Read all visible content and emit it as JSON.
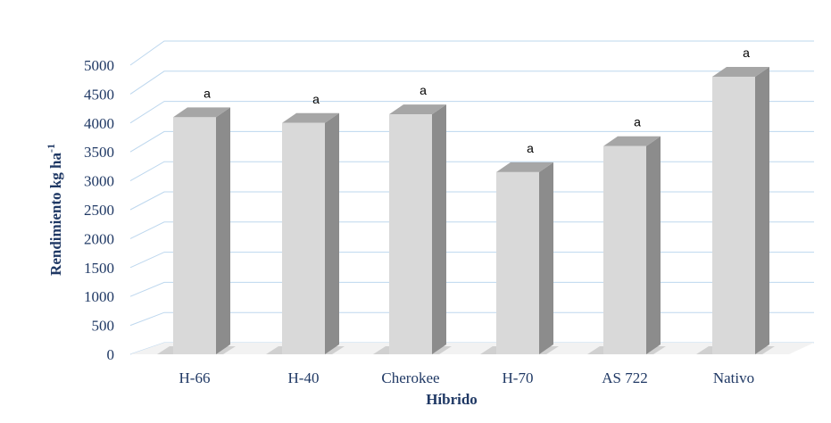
{
  "chart_data": {
    "type": "bar",
    "title": "",
    "xlabel": "Híbrido",
    "ylabel": "Rendimiento kg ha-1",
    "ylabel_main": "Rendimiento kg ha",
    "ylabel_sup": "-1",
    "categories": [
      "H-66",
      "H-40",
      "Cherokee",
      "H-70",
      "AS 722",
      "Nativo"
    ],
    "values": [
      4100,
      4000,
      4150,
      3150,
      3600,
      4800
    ],
    "annotations": [
      "a",
      "a",
      "a",
      "a",
      "a",
      "a"
    ],
    "ylim": [
      0,
      5000
    ],
    "yticks": [
      0,
      500,
      1000,
      1500,
      2000,
      2500,
      3000,
      3500,
      4000,
      4500,
      5000
    ],
    "ytick_labels": [
      "0",
      "500",
      "1000",
      "1500",
      "2000",
      "2500",
      "3000",
      "3500",
      "4000",
      "4500",
      "5000"
    ],
    "grid": true,
    "style": "3d-columns",
    "colors": {
      "bar_front": "#d9d9d9",
      "bar_side": "#8c8c8c",
      "bar_top": "#a6a6a6",
      "grid": "#bdd7ee",
      "text": "#1f3864",
      "floor": "#d0d0d0"
    }
  }
}
